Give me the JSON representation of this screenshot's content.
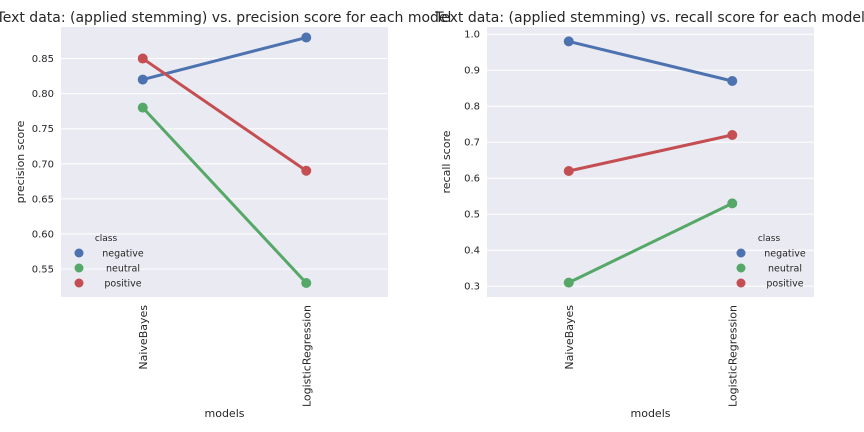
{
  "chart_data": [
    {
      "type": "line",
      "title": "Text data: (applied stemming) vs. precision score for each model",
      "xlabel": "models",
      "ylabel": "precision score",
      "categories": [
        "NaiveBayes",
        "LogisticRegression"
      ],
      "yticks": [
        "0.55",
        "0.60",
        "0.65",
        "0.70",
        "0.75",
        "0.80",
        "0.85"
      ],
      "ylim": [
        0.51,
        0.895
      ],
      "grid": true,
      "legend": {
        "title": "class",
        "placement": "bottom-left"
      },
      "series": [
        {
          "name": "negative",
          "color": "#4c72b0",
          "values": [
            0.82,
            0.88
          ]
        },
        {
          "name": "neutral",
          "color": "#55a868",
          "values": [
            0.78,
            0.53
          ]
        },
        {
          "name": "positive",
          "color": "#c44e52",
          "values": [
            0.85,
            0.69
          ]
        }
      ]
    },
    {
      "type": "line",
      "title": "Text data: (applied stemming) vs. recall score for each model",
      "xlabel": "models",
      "ylabel": "recall score",
      "categories": [
        "NaiveBayes",
        "LogisticRegression"
      ],
      "yticks": [
        "0.3",
        "0.4",
        "0.5",
        "0.6",
        "0.7",
        "0.8",
        "0.9",
        "1.0"
      ],
      "ylim": [
        0.27,
        1.02
      ],
      "grid": true,
      "legend": {
        "title": "class",
        "placement": "bottom-right"
      },
      "series": [
        {
          "name": "negative",
          "color": "#4c72b0",
          "values": [
            0.98,
            0.87
          ]
        },
        {
          "name": "neutral",
          "color": "#55a868",
          "values": [
            0.31,
            0.53
          ]
        },
        {
          "name": "positive",
          "color": "#c44e52",
          "values": [
            0.62,
            0.72
          ]
        }
      ]
    }
  ]
}
